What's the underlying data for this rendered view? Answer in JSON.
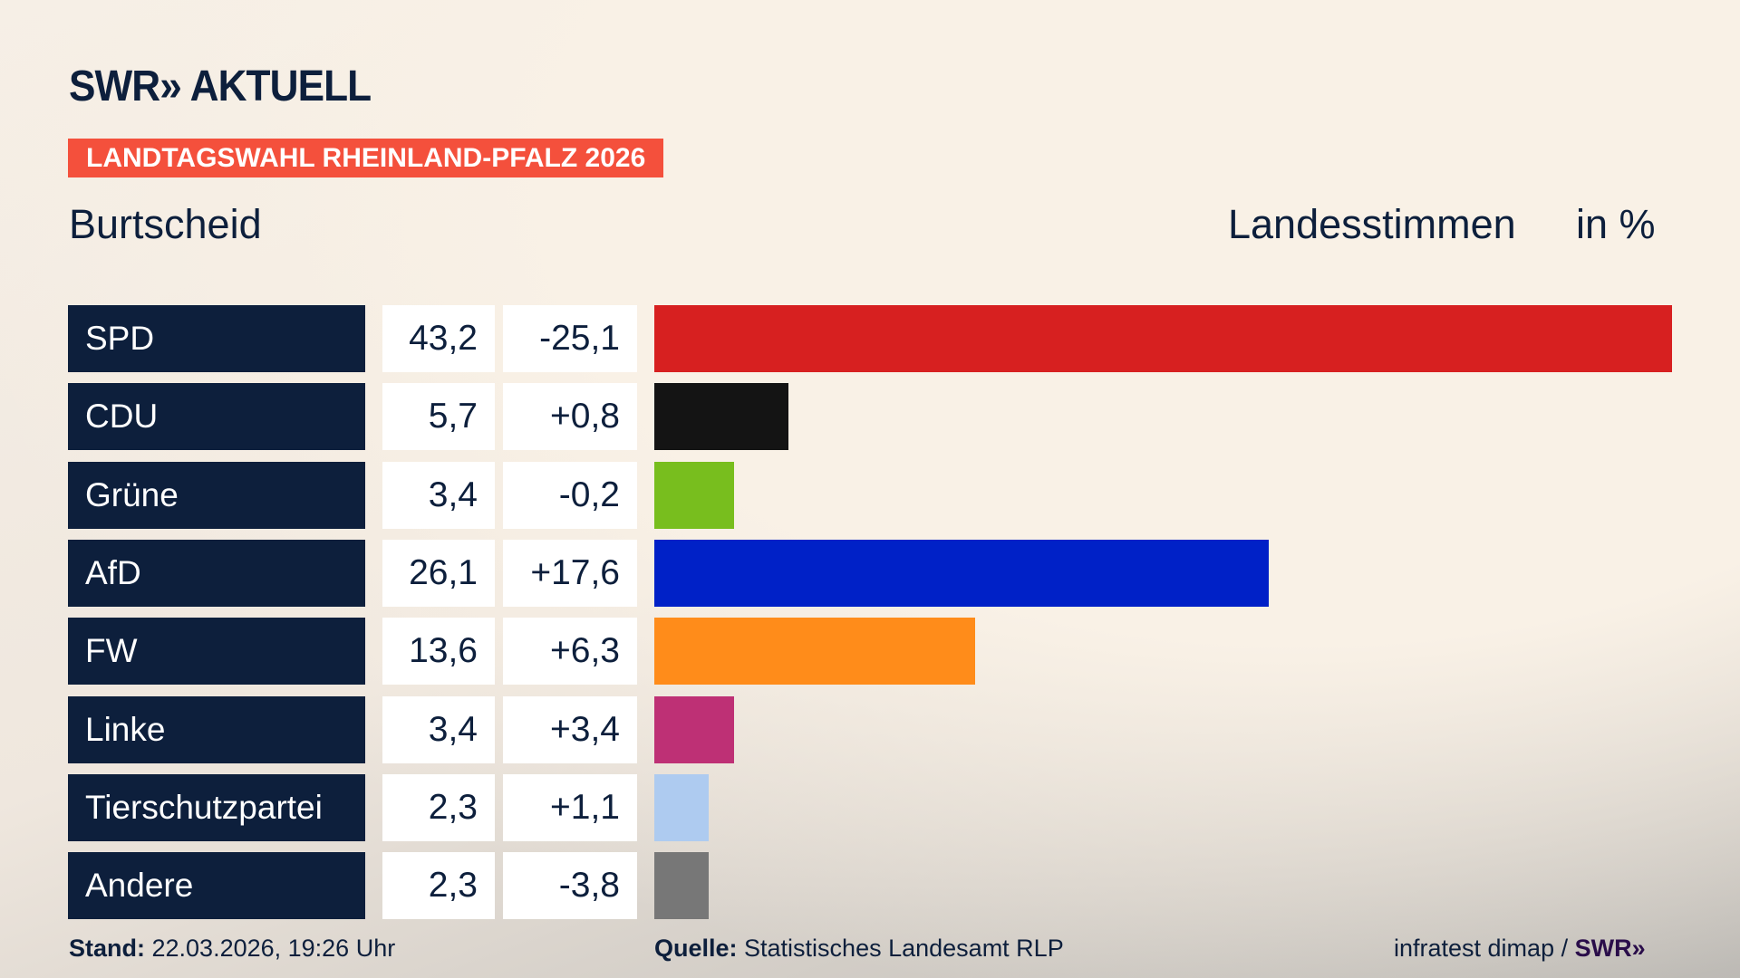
{
  "header": {
    "logo": "SWR» AKTUELL",
    "banner": "LANDTAGSWAHL RHEINLAND-PFALZ 2026",
    "region": "Burtscheid",
    "metric": "Landesstimmen",
    "unit": "in %"
  },
  "chart_data": {
    "type": "bar",
    "orientation": "horizontal",
    "categories": [
      "SPD",
      "CDU",
      "Grüne",
      "AfD",
      "FW",
      "Linke",
      "Tierschutzpartei",
      "Andere"
    ],
    "values": [
      43.2,
      5.7,
      3.4,
      26.1,
      13.6,
      3.4,
      2.3,
      2.3
    ],
    "value_labels": [
      "43,2",
      "5,7",
      "3,4",
      "26,1",
      "13,6",
      "3,4",
      "2,3",
      "2,3"
    ],
    "diff_labels": [
      "-25,1",
      "+0,8",
      "-0,2",
      "+17,6",
      "+6,3",
      "+3,4",
      "+1,1",
      "-3,8"
    ],
    "colors": [
      "#d72020",
      "#141414",
      "#78be1e",
      "#0021c7",
      "#ff8c1a",
      "#be3075",
      "#aecbf0",
      "#777777"
    ],
    "xlim": [
      0,
      43.2
    ]
  },
  "footer": {
    "stand_label": "Stand:",
    "stand_value": " 22.03.2026, 19:26 Uhr",
    "source_label": "Quelle:",
    "source_value": " Statistisches Landesamt RLP",
    "credit": "infratest dimap / ",
    "credit_logo": "SWR»"
  }
}
